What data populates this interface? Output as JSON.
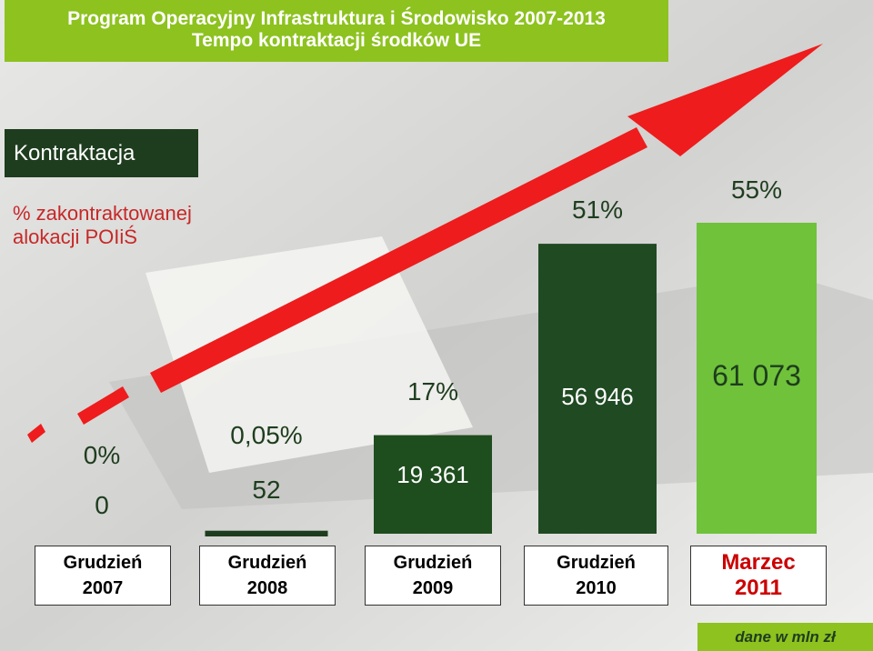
{
  "title": [
    "Program Operacyjny Infrastruktura i Środowisko 2007-2013",
    "Tempo kontraktacji środków UE"
  ],
  "chart_data": {
    "type": "bar",
    "subtitle": "Kontraktacja",
    "note": "dane w mln zł",
    "categories": [
      "Grudzień\n2007",
      "Grudzień\n2008",
      "Grudzień\n2009",
      "Grudzień\n2010",
      "Marzec\n2011"
    ],
    "category_colors": [
      "#000000",
      "#000000",
      "#000000",
      "#000000",
      "#cc0000"
    ],
    "series": [
      {
        "values": [
          0,
          52,
          19361,
          56946,
          61073
        ],
        "value_labels": [
          "0",
          "52",
          "19 361",
          "56 946",
          "61 073"
        ],
        "colors": [
          "#1e3d1e",
          "#1e3d1e",
          "#1e4d1e",
          "#1f4a22",
          "#6fc23a"
        ]
      },
      {
        "name": "% zakontraktowanej\nalokacji POIiŚ",
        "values": [
          0,
          0.05,
          17,
          51,
          55
        ],
        "value_labels": [
          "0%",
          "0,05%",
          "17%",
          "51%",
          "55%"
        ]
      }
    ]
  }
}
